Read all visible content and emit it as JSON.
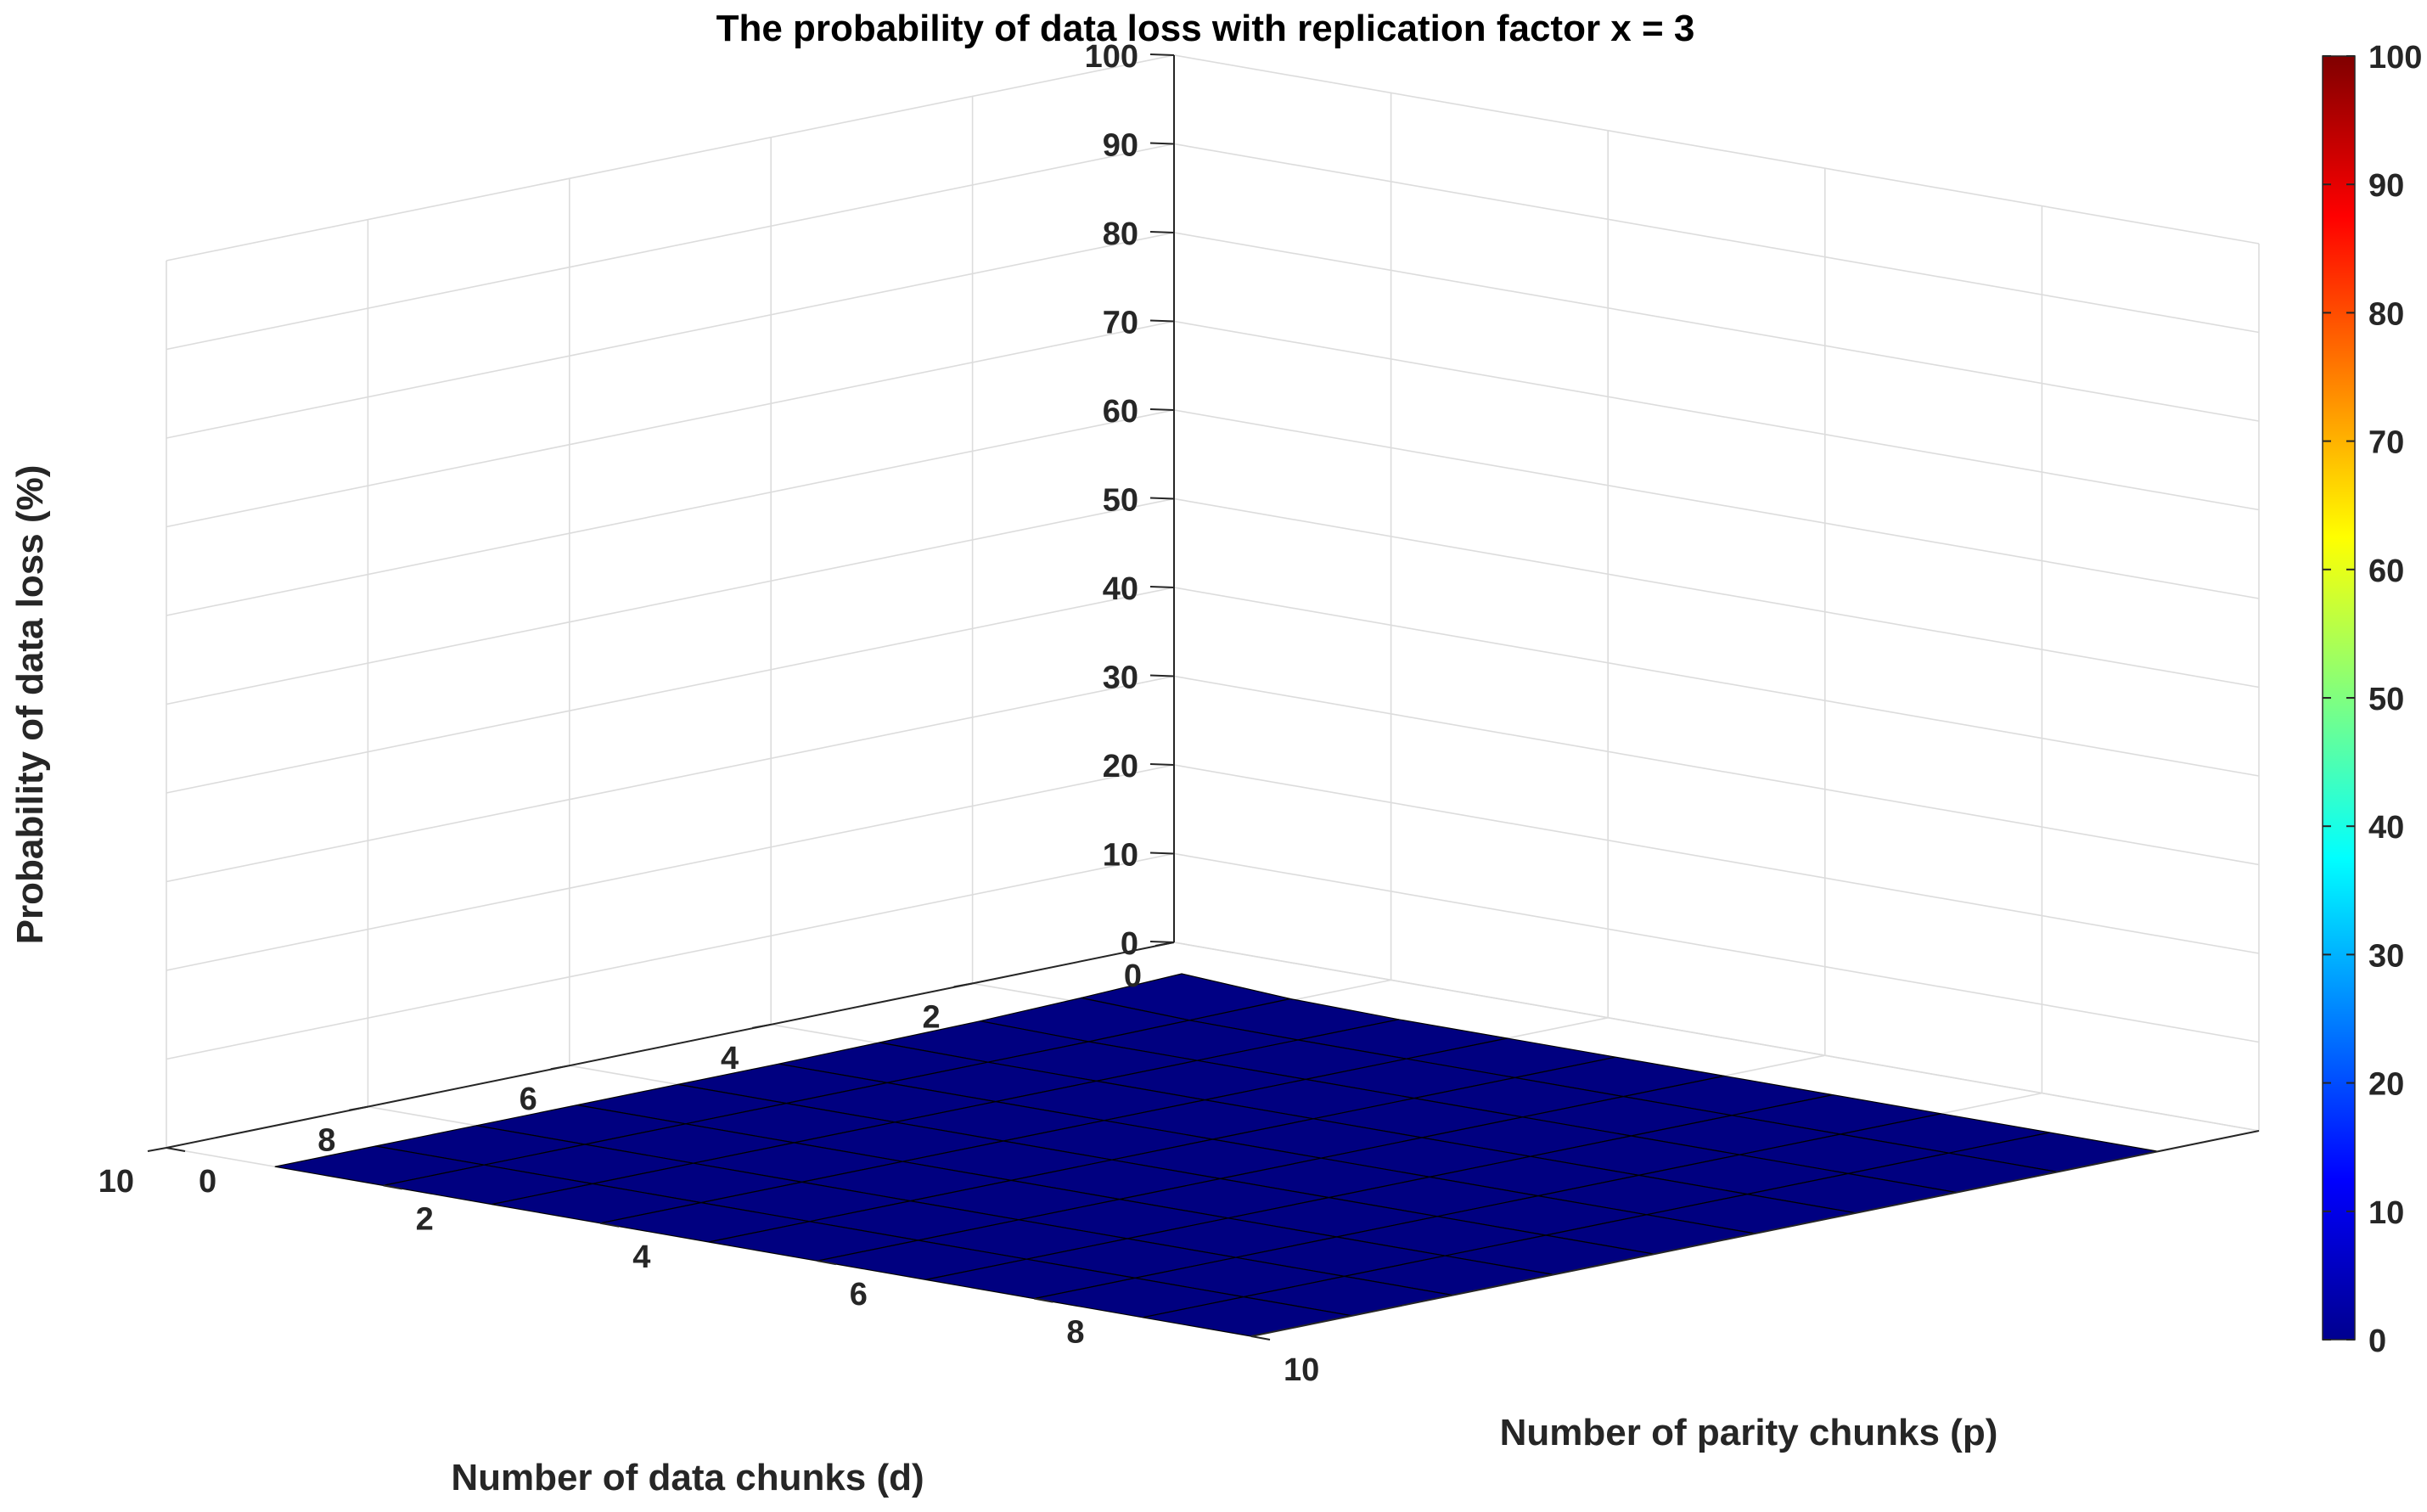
{
  "chart_data": {
    "type": "surface3d",
    "title": "The probability of data loss with replication factor x = 3",
    "xlabel": "Number of data chunks (d)",
    "ylabel": "Number of parity chunks (p)",
    "zlabel": "Probability of data loss (%)",
    "x": [
      1,
      2,
      3,
      4,
      5,
      6,
      7,
      8,
      9,
      10
    ],
    "y": [
      1,
      2,
      3,
      4,
      5,
      6,
      7,
      8,
      9,
      10
    ],
    "xlim": [
      0,
      10
    ],
    "ylim": [
      0,
      10
    ],
    "zlim": [
      0,
      100
    ],
    "x_ticks": [
      "0",
      "2",
      "4",
      "6",
      "8",
      "10"
    ],
    "y_ticks": [
      "0",
      "2",
      "4",
      "6",
      "8",
      "10"
    ],
    "z_ticks": [
      "0",
      "10",
      "20",
      "30",
      "40",
      "50",
      "60",
      "70",
      "80",
      "90",
      "100"
    ],
    "z_values_note_rows_are_x_cols_are_y": [],
    "z": [
      [
        0.9,
        0.2,
        0,
        0,
        0,
        0,
        0,
        0,
        0,
        0
      ],
      [
        0.5,
        0.1,
        0,
        0,
        0,
        0,
        0,
        0,
        0,
        0
      ],
      [
        0.2,
        0,
        0,
        0,
        0,
        0,
        0,
        0,
        0,
        0
      ],
      [
        0.1,
        0,
        0,
        0,
        0,
        0,
        0,
        0,
        0,
        0
      ],
      [
        0,
        0,
        0,
        0,
        0,
        0,
        0,
        0,
        0,
        0
      ],
      [
        0,
        0,
        0,
        0,
        0,
        0,
        0,
        0,
        0,
        0
      ],
      [
        0,
        0,
        0,
        0,
        0,
        0,
        0,
        0,
        0,
        0
      ],
      [
        0,
        0,
        0,
        0,
        0,
        0,
        0,
        0,
        0,
        0
      ],
      [
        0,
        0,
        0,
        0,
        0,
        0,
        0,
        0,
        0,
        0
      ],
      [
        0,
        0,
        0,
        0,
        0,
        0,
        0,
        0,
        0,
        0
      ]
    ],
    "grid": true,
    "colormap": "jet",
    "colorbar": {
      "range": [
        0,
        100
      ],
      "ticks": [
        "0",
        "10",
        "20",
        "30",
        "40",
        "50",
        "60",
        "70",
        "80",
        "90",
        "100"
      ],
      "placement": "right"
    }
  }
}
